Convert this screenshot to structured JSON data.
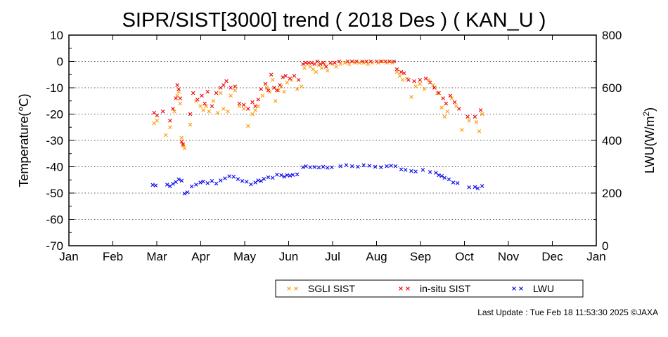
{
  "chart_data": {
    "type": "scatter",
    "title": "SIPR/SIST[3000] trend ( 2018 Des ) ( KAN_U )",
    "ylabel": "Temperature(℃)",
    "y2label_main": "LWU(W/m",
    "y2label_sup": "2",
    "y2label_end": ")",
    "ylim": [
      -70,
      10
    ],
    "y2lim": [
      0,
      800
    ],
    "yticks": [
      "10",
      "0",
      "-10",
      "-20",
      "-30",
      "-40",
      "-50",
      "-60",
      "-70"
    ],
    "y2ticks": [
      "800",
      "600",
      "400",
      "200",
      "0"
    ],
    "xticks": [
      "Jan",
      "Feb",
      "Mar",
      "Apr",
      "May",
      "Jun",
      "Jul",
      "Aug",
      "Sep",
      "Oct",
      "Nov",
      "Dec",
      "Jan"
    ],
    "grid": "horizontal dotted at each 10 ℃",
    "legend_position": "bottom-right",
    "colors": {
      "sgli": "#ff9900",
      "insitu": "#ee0000",
      "lwu": "#0000ee",
      "grid": "#555555"
    },
    "series": [
      {
        "name": "SGLI SIST",
        "axis": "left",
        "marker": "x",
        "points": [
          [
            "2018-03-01",
            -23.5
          ],
          [
            "2018-03-03",
            -22.5
          ],
          [
            "2018-03-09",
            -28
          ],
          [
            "2018-03-12",
            -25
          ],
          [
            "2018-03-15",
            -19
          ],
          [
            "2018-03-17",
            -13
          ],
          [
            "2018-03-18",
            -11.5
          ],
          [
            "2018-03-19",
            -16
          ],
          [
            "2018-03-20",
            -29
          ],
          [
            "2018-03-21",
            -32
          ],
          [
            "2018-03-22",
            -33
          ],
          [
            "2018-03-26",
            -24
          ],
          [
            "2018-03-30",
            -15
          ],
          [
            "2018-04-02",
            -17
          ],
          [
            "2018-04-04",
            -18.5
          ],
          [
            "2018-04-06",
            -17
          ],
          [
            "2018-04-08",
            -19
          ],
          [
            "2018-04-11",
            -15
          ],
          [
            "2018-04-14",
            -19.5
          ],
          [
            "2018-04-16",
            -12
          ],
          [
            "2018-04-18",
            -18
          ],
          [
            "2018-04-21",
            -19
          ],
          [
            "2018-04-23",
            -13
          ],
          [
            "2018-04-26",
            -11
          ],
          [
            "2018-04-29",
            -17
          ],
          [
            "2018-05-02",
            -18
          ],
          [
            "2018-05-05",
            -24.5
          ],
          [
            "2018-05-08",
            -20
          ],
          [
            "2018-05-10",
            -18.5
          ],
          [
            "2018-05-12",
            -17
          ],
          [
            "2018-05-15",
            -13
          ],
          [
            "2018-05-18",
            -10
          ],
          [
            "2018-05-20",
            -11.5
          ],
          [
            "2018-05-22",
            -7
          ],
          [
            "2018-05-24",
            -15
          ],
          [
            "2018-05-26",
            -11
          ],
          [
            "2018-05-28",
            -9.5
          ],
          [
            "2018-05-30",
            -11.5
          ],
          [
            "2018-06-01",
            -8
          ],
          [
            "2018-06-04",
            -7
          ],
          [
            "2018-06-08",
            -10.5
          ],
          [
            "2018-06-11",
            -9.5
          ],
          [
            "2018-06-13",
            -2.5
          ],
          [
            "2018-06-15",
            -1
          ],
          [
            "2018-06-17",
            -2
          ],
          [
            "2018-06-19",
            -3
          ],
          [
            "2018-06-21",
            -4
          ],
          [
            "2018-06-23",
            -1.5
          ],
          [
            "2018-06-25",
            -2.5
          ],
          [
            "2018-06-27",
            -1
          ],
          [
            "2018-06-29",
            -3.5
          ],
          [
            "2018-07-02",
            -1
          ],
          [
            "2018-07-05",
            -2
          ],
          [
            "2018-07-08",
            -1
          ],
          [
            "2018-07-11",
            -0.5
          ],
          [
            "2018-07-14",
            -1
          ],
          [
            "2018-07-18",
            -0.5
          ],
          [
            "2018-07-21",
            -0.5
          ],
          [
            "2018-07-24",
            -0.5
          ],
          [
            "2018-07-27",
            -1
          ],
          [
            "2018-07-30",
            -0.5
          ],
          [
            "2018-08-03",
            -0.5
          ],
          [
            "2018-08-06",
            0
          ],
          [
            "2018-08-09",
            -0.5
          ],
          [
            "2018-08-13",
            -0.5
          ],
          [
            "2018-08-16",
            -4
          ],
          [
            "2018-08-18",
            -5.5
          ],
          [
            "2018-08-20",
            -7
          ],
          [
            "2018-08-23",
            -6.5
          ],
          [
            "2018-08-26",
            -13.5
          ],
          [
            "2018-08-29",
            -9.5
          ],
          [
            "2018-09-01",
            -8.5
          ],
          [
            "2018-09-04",
            -10.5
          ],
          [
            "2018-09-07",
            -7
          ],
          [
            "2018-09-10",
            -9
          ],
          [
            "2018-09-13",
            -12
          ],
          [
            "2018-09-16",
            -17.5
          ],
          [
            "2018-09-18",
            -21
          ],
          [
            "2018-09-20",
            -19
          ],
          [
            "2018-09-23",
            -14
          ],
          [
            "2018-09-26",
            -17
          ],
          [
            "2018-09-30",
            -26
          ],
          [
            "2018-10-05",
            -22.5
          ],
          [
            "2018-10-10",
            -23
          ],
          [
            "2018-10-12",
            -26.5
          ],
          [
            "2018-10-14",
            -20
          ]
        ]
      },
      {
        "name": "in-situ SIST",
        "axis": "left",
        "marker": "x",
        "points": [
          [
            "2018-03-01",
            -19.5
          ],
          [
            "2018-03-03",
            -20.5
          ],
          [
            "2018-03-07",
            -19
          ],
          [
            "2018-03-12",
            -22.5
          ],
          [
            "2018-03-14",
            -18
          ],
          [
            "2018-03-16",
            -14
          ],
          [
            "2018-03-17",
            -9
          ],
          [
            "2018-03-18",
            -10.5
          ],
          [
            "2018-03-19",
            -14
          ],
          [
            "2018-03-20",
            -30.5
          ],
          [
            "2018-03-21",
            -31.5
          ],
          [
            "2018-03-26",
            -20
          ],
          [
            "2018-03-28",
            -12
          ],
          [
            "2018-03-31",
            -14.5
          ],
          [
            "2018-04-03",
            -13
          ],
          [
            "2018-04-05",
            -16
          ],
          [
            "2018-04-07",
            -11.5
          ],
          [
            "2018-04-10",
            -17
          ],
          [
            "2018-04-13",
            -12
          ],
          [
            "2018-04-16",
            -10
          ],
          [
            "2018-04-18",
            -9
          ],
          [
            "2018-04-20",
            -7.5
          ],
          [
            "2018-04-23",
            -10
          ],
          [
            "2018-04-26",
            -9.5
          ],
          [
            "2018-04-29",
            -16
          ],
          [
            "2018-05-02",
            -16.5
          ],
          [
            "2018-05-05",
            -18
          ],
          [
            "2018-05-08",
            -15.5
          ],
          [
            "2018-05-10",
            -17
          ],
          [
            "2018-05-12",
            -14.5
          ],
          [
            "2018-05-14",
            -10.5
          ],
          [
            "2018-05-17",
            -8.5
          ],
          [
            "2018-05-19",
            -11
          ],
          [
            "2018-05-21",
            -5
          ],
          [
            "2018-05-23",
            -10
          ],
          [
            "2018-05-25",
            -11
          ],
          [
            "2018-05-27",
            -9
          ],
          [
            "2018-05-29",
            -6
          ],
          [
            "2018-05-31",
            -5.5
          ],
          [
            "2018-06-03",
            -6.5
          ],
          [
            "2018-06-06",
            -5.5
          ],
          [
            "2018-06-09",
            -7
          ],
          [
            "2018-06-12",
            -1
          ],
          [
            "2018-06-14",
            -0.5
          ],
          [
            "2018-06-16",
            -0.5
          ],
          [
            "2018-06-18",
            -0.5
          ],
          [
            "2018-06-20",
            -1
          ],
          [
            "2018-06-22",
            0
          ],
          [
            "2018-06-24",
            -1
          ],
          [
            "2018-06-26",
            -0.5
          ],
          [
            "2018-06-28",
            -2
          ],
          [
            "2018-07-01",
            -0.5
          ],
          [
            "2018-07-04",
            -0.5
          ],
          [
            "2018-07-07",
            0
          ],
          [
            "2018-07-13",
            0
          ],
          [
            "2018-07-16",
            0
          ],
          [
            "2018-07-19",
            0
          ],
          [
            "2018-07-23",
            0
          ],
          [
            "2018-07-26",
            0
          ],
          [
            "2018-07-29",
            0
          ],
          [
            "2018-08-02",
            0
          ],
          [
            "2018-08-05",
            0
          ],
          [
            "2018-08-08",
            0
          ],
          [
            "2018-08-11",
            0
          ],
          [
            "2018-08-14",
            0
          ],
          [
            "2018-08-16",
            -3
          ],
          [
            "2018-08-19",
            -4
          ],
          [
            "2018-08-21",
            -4.5
          ],
          [
            "2018-08-24",
            -7
          ],
          [
            "2018-08-28",
            -7.5
          ],
          [
            "2018-09-01",
            -7
          ],
          [
            "2018-09-05",
            -6.5
          ],
          [
            "2018-09-08",
            -8
          ],
          [
            "2018-09-11",
            -10
          ],
          [
            "2018-09-14",
            -12
          ],
          [
            "2018-09-17",
            -14
          ],
          [
            "2018-09-19",
            -16
          ],
          [
            "2018-09-22",
            -13
          ],
          [
            "2018-09-25",
            -15.5
          ],
          [
            "2018-09-28",
            -18
          ],
          [
            "2018-10-04",
            -21
          ],
          [
            "2018-10-09",
            -21
          ],
          [
            "2018-10-13",
            -18.5
          ]
        ]
      },
      {
        "name": "LWU",
        "axis": "right",
        "marker": "x",
        "points": [
          [
            "2018-02-28",
            231
          ],
          [
            "2018-03-02",
            229
          ],
          [
            "2018-03-10",
            232
          ],
          [
            "2018-03-12",
            226
          ],
          [
            "2018-03-14",
            235
          ],
          [
            "2018-03-16",
            242
          ],
          [
            "2018-03-18",
            252
          ],
          [
            "2018-03-20",
            247
          ],
          [
            "2018-03-22",
            198
          ],
          [
            "2018-03-24",
            203
          ],
          [
            "2018-03-27",
            225
          ],
          [
            "2018-03-30",
            232
          ],
          [
            "2018-04-02",
            240
          ],
          [
            "2018-04-04",
            244
          ],
          [
            "2018-04-07",
            238
          ],
          [
            "2018-04-10",
            246
          ],
          [
            "2018-04-13",
            236
          ],
          [
            "2018-04-16",
            248
          ],
          [
            "2018-04-19",
            256
          ],
          [
            "2018-04-22",
            264
          ],
          [
            "2018-04-25",
            262
          ],
          [
            "2018-04-28",
            253
          ],
          [
            "2018-05-01",
            246
          ],
          [
            "2018-05-04",
            243
          ],
          [
            "2018-05-07",
            233
          ],
          [
            "2018-05-10",
            240
          ],
          [
            "2018-05-12",
            248
          ],
          [
            "2018-05-14",
            246
          ],
          [
            "2018-05-16",
            254
          ],
          [
            "2018-05-19",
            260
          ],
          [
            "2018-05-22",
            258
          ],
          [
            "2018-05-25",
            270
          ],
          [
            "2018-05-28",
            268
          ],
          [
            "2018-05-30",
            262
          ],
          [
            "2018-06-01",
            268
          ],
          [
            "2018-06-03",
            266
          ],
          [
            "2018-06-05",
            269
          ],
          [
            "2018-06-08",
            271
          ],
          [
            "2018-06-12",
            298
          ],
          [
            "2018-06-14",
            302
          ],
          [
            "2018-06-17",
            298
          ],
          [
            "2018-06-20",
            299
          ],
          [
            "2018-06-23",
            297
          ],
          [
            "2018-06-26",
            300
          ],
          [
            "2018-06-29",
            296
          ],
          [
            "2018-07-02",
            298
          ],
          [
            "2018-07-08",
            302
          ],
          [
            "2018-07-12",
            306
          ],
          [
            "2018-07-16",
            302
          ],
          [
            "2018-07-20",
            300
          ],
          [
            "2018-07-24",
            306
          ],
          [
            "2018-07-28",
            304
          ],
          [
            "2018-08-01",
            300
          ],
          [
            "2018-08-05",
            298
          ],
          [
            "2018-08-09",
            302
          ],
          [
            "2018-08-12",
            304
          ],
          [
            "2018-08-15",
            302
          ],
          [
            "2018-08-19",
            290
          ],
          [
            "2018-08-22",
            288
          ],
          [
            "2018-08-26",
            284
          ],
          [
            "2018-08-29",
            282
          ],
          [
            "2018-09-03",
            288
          ],
          [
            "2018-09-08",
            280
          ],
          [
            "2018-09-12",
            277
          ],
          [
            "2018-09-14",
            268
          ],
          [
            "2018-09-16",
            265
          ],
          [
            "2018-09-18",
            258
          ],
          [
            "2018-09-21",
            252
          ],
          [
            "2018-09-24",
            240
          ],
          [
            "2018-09-27",
            238
          ],
          [
            "2018-10-05",
            222
          ],
          [
            "2018-10-09",
            223
          ],
          [
            "2018-10-11",
            218
          ],
          [
            "2018-10-14",
            227
          ]
        ]
      }
    ]
  },
  "legend": [
    {
      "label": "SGLI SIST",
      "color": "#ff9900"
    },
    {
      "label": "in-situ SIST",
      "color": "#ee0000"
    },
    {
      "label": "LWU",
      "color": "#0000ee"
    }
  ],
  "footer": {
    "last_update": "Last Update : Tue Feb 18 11:53:30 2025  ©JAXA"
  }
}
